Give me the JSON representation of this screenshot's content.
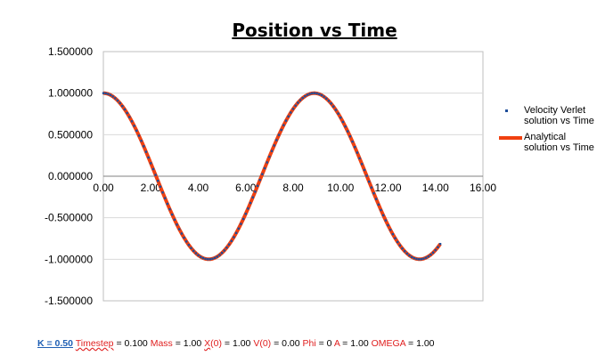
{
  "chart_data": {
    "type": "scatter",
    "title": "Position vs Time",
    "xlabel": "",
    "ylabel": "",
    "xlim": [
      0,
      16
    ],
    "ylim": [
      -1.5,
      1.5
    ],
    "x_ticks": [
      "0.00",
      "2.00",
      "4.00",
      "6.00",
      "8.00",
      "10.00",
      "12.00",
      "14.00",
      "16.00"
    ],
    "y_ticks": [
      "1.500000",
      "1.000000",
      "0.500000",
      "0.000000",
      "-0.500000",
      "-1.000000",
      "-1.500000"
    ],
    "x_tick_values": [
      0,
      2,
      4,
      6,
      8,
      10,
      12,
      14,
      16
    ],
    "y_tick_values": [
      1.5,
      1.0,
      0.5,
      0.0,
      -0.5,
      -1.0,
      -1.5
    ],
    "grid": "horizontal",
    "legend_position": "right",
    "series": [
      {
        "name": "Velocity Verlet solution vs Time",
        "style": "markers",
        "color": "#1F4E9A",
        "x_start": 0.0,
        "x_end": 14.2,
        "x_step": 0.1,
        "y_formula": "cos(sqrt(K/Mass) * t)"
      },
      {
        "name": "Analytical solution vs Time",
        "style": "line",
        "color": "#F04010",
        "x_start": 0.0,
        "x_end": 14.2,
        "x_step": 0.1,
        "y_formula": "A * cos(OMEGA' * t + Phi)"
      }
    ]
  },
  "legend": {
    "item1": "Velocity Verlet solution vs Time",
    "item2": "Analytical solution vs Time"
  },
  "params": {
    "k_label": "K = 0.50",
    "timestep_label": "Timestep",
    "timestep_value": " = 0.100 ",
    "mass_label": "Mass",
    "mass_value": " = 1.00 ",
    "x0_label_a": "X",
    "x0_label_b": "(0)",
    "x0_value": " = 1.00 ",
    "v0_label": "V(0)",
    "v0_value": " = 0.00 ",
    "phi_label": "Phi",
    "phi_value": " = 0 ",
    "a_label": "A",
    "a_value": " = 1.00 ",
    "omega_label": "OMEGA",
    "omega_value": " = 1.00"
  },
  "model": {
    "K": 0.5,
    "Mass": 1.0,
    "A": 1.0,
    "Phi": 0.0
  }
}
